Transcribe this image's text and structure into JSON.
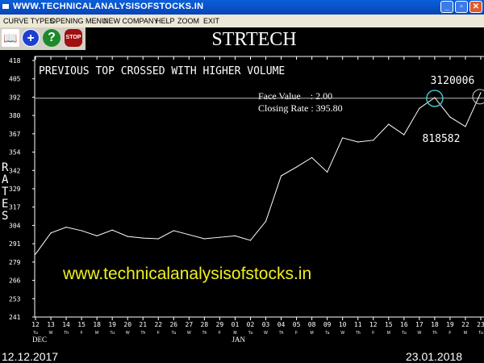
{
  "window": {
    "title": "WWW.TECHNICALANALYSISOFSTOCKS.IN",
    "controls": [
      "minimize",
      "restore",
      "close"
    ]
  },
  "menu": [
    "CURVE TYPES",
    "OPENING MENU",
    "NEW COMPANY",
    "HELP",
    "ZOOM",
    "EXIT"
  ],
  "toolbar": [
    {
      "icon": "book-icon"
    },
    {
      "icon": "plus-icon",
      "color": "#1c3fd0"
    },
    {
      "icon": "help-icon",
      "label": "?",
      "color": "#1b8a2a"
    },
    {
      "icon": "stop-icon",
      "label": "STOP",
      "color": "#a01010"
    }
  ],
  "company": "STRTECH",
  "info": {
    "face_value": "Face Value    : 2.00",
    "closing_rate": "Closing Rate : 395.80"
  },
  "watermark": "www.technicalanalysisofstocks.in",
  "start_date": "12.12.2017",
  "end_date": "23.01.2018",
  "chart_data": {
    "type": "line",
    "annotation": "PREVIOUS TOP CROSSED WITH HIGHER VOLUME",
    "ylabel": "RATES",
    "ylim": [
      241,
      418
    ],
    "yticks": [
      "418",
      "405",
      "392",
      "380",
      "367",
      "354",
      "342",
      "329",
      "317",
      "304",
      "291",
      "279",
      "266",
      "253",
      "241"
    ],
    "x": [
      "12",
      "13",
      "14",
      "15",
      "18",
      "19",
      "20",
      "21",
      "22",
      "26",
      "27",
      "28",
      "29",
      "01",
      "02",
      "03",
      "04",
      "05",
      "08",
      "09",
      "10",
      "11",
      "12",
      "15",
      "16",
      "17",
      "18",
      "19",
      "22",
      "23"
    ],
    "weekdays": [
      "Tu",
      "W",
      "Th",
      "F",
      "M",
      "Tu",
      "W",
      "Th",
      "F",
      "Tu",
      "W",
      "Th",
      "F",
      "M",
      "Tu",
      "W",
      "Th",
      "F",
      "M",
      "Tu",
      "W",
      "Th",
      "F",
      "M",
      "Tu",
      "W",
      "Th",
      "F",
      "M",
      "Tu"
    ],
    "months": [
      {
        "label": "DEC",
        "index": 0
      },
      {
        "label": "JAN",
        "index": 13
      }
    ],
    "values": [
      284.4,
      299,
      303,
      300.6,
      297,
      301,
      296.6,
      295.5,
      295,
      300.6,
      297.8,
      295,
      296,
      297,
      293.9,
      307,
      338.4,
      344.5,
      351,
      341,
      364.6,
      361.8,
      363,
      374,
      366.8,
      385,
      392.4,
      379,
      372.4,
      395.8
    ],
    "reference_line": 392,
    "volume_labels": [
      {
        "index": 26,
        "text": "3120006",
        "circle_color": "#40c0c8"
      },
      {
        "index": 28,
        "text": "818582"
      }
    ],
    "colors": {
      "line": "#ffffff",
      "axis": "#ffffff",
      "watermark": "#f0f020"
    }
  }
}
